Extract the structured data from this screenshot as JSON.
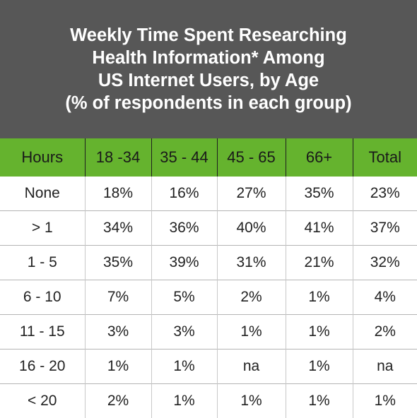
{
  "chart_data": {
    "type": "table",
    "title_lines": [
      "Weekly Time Spent Researching",
      "Health Information* Among",
      "US Internet Users, by Age",
      "(% of respondents in each group)"
    ],
    "columns": [
      "Hours",
      "18 -34",
      "35 - 44",
      "45 - 65",
      "66+",
      "Total"
    ],
    "rows": [
      [
        "None",
        "18%",
        "16%",
        "27%",
        "35%",
        "23%"
      ],
      [
        "> 1",
        "34%",
        "36%",
        "40%",
        "41%",
        "37%"
      ],
      [
        "1 - 5",
        "35%",
        "39%",
        "31%",
        "21%",
        "32%"
      ],
      [
        "6 - 10",
        "7%",
        "5%",
        "2%",
        "1%",
        "4%"
      ],
      [
        "11 - 15",
        "3%",
        "3%",
        "1%",
        "1%",
        "2%"
      ],
      [
        "16 - 20",
        "1%",
        "1%",
        "na",
        "1%",
        "na"
      ],
      [
        "< 20",
        "2%",
        "1%",
        "1%",
        "1%",
        "1%"
      ]
    ],
    "colors": {
      "title_background": "#575757",
      "header_background": "#65b32e",
      "title_text": "#ffffff"
    }
  }
}
